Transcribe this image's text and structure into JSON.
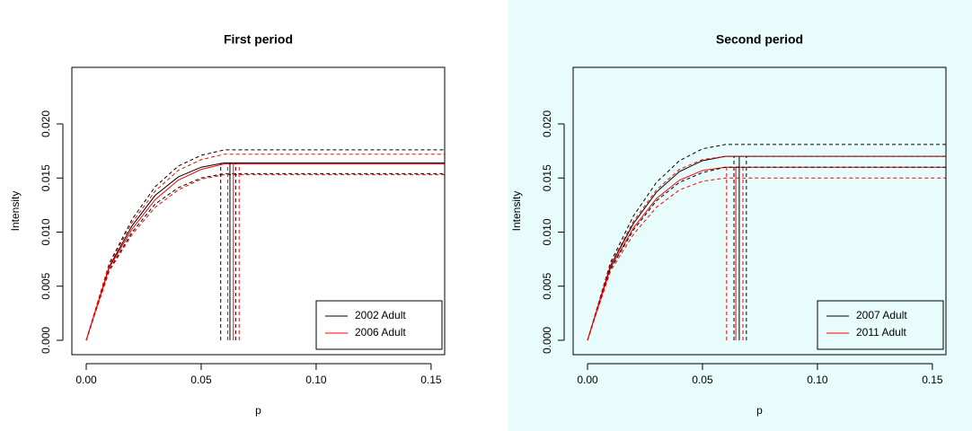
{
  "chart_data": [
    {
      "type": "line",
      "title": "First period",
      "xlabel": "p",
      "ylabel": "Intensity",
      "background": "#ffffff",
      "xlim": [
        -0.00625,
        0.1559
      ],
      "ylim": [
        -0.00133,
        0.02523
      ],
      "xticks": [
        {
          "value": 0,
          "label": "0.00"
        },
        {
          "value": 0.05,
          "label": "0.05"
        },
        {
          "value": 0.1,
          "label": "0.10"
        },
        {
          "value": 0.15,
          "label": "0.15"
        }
      ],
      "yticks": [
        {
          "value": 0,
          "label": "0.000"
        },
        {
          "value": 0.005,
          "label": "0.005"
        },
        {
          "value": 0.01,
          "label": "0.010"
        },
        {
          "value": 0.015,
          "label": "0.015"
        },
        {
          "value": 0.02,
          "label": "0.020"
        }
      ],
      "x": [
        0,
        0.01,
        0.02,
        0.03,
        0.04,
        0.05,
        0.06,
        0.156
      ],
      "series": [
        {
          "name": "2002 Adult",
          "color": "#000000",
          "dash": false,
          "values": [
            0,
            0.0068,
            0.0106,
            0.0134,
            0.0151,
            0.016,
            0.0164,
            0.0164
          ]
        },
        {
          "name": "2006 Adult",
          "color": "#ff0000",
          "dash": false,
          "values": [
            0,
            0.0067,
            0.0103,
            0.013,
            0.0148,
            0.0158,
            0.0163,
            0.0163
          ]
        },
        {
          "color": "#000000",
          "dash": true,
          "values": [
            0,
            0.0071,
            0.0112,
            0.0142,
            0.0161,
            0.0171,
            0.0176,
            0.0176
          ]
        },
        {
          "color": "#000000",
          "dash": true,
          "values": [
            0,
            0.0065,
            0.01,
            0.0126,
            0.0141,
            0.015,
            0.0154,
            0.0154
          ]
        },
        {
          "color": "#ff0000",
          "dash": true,
          "values": [
            0,
            0.007,
            0.0109,
            0.0138,
            0.0157,
            0.0167,
            0.0172,
            0.0172
          ]
        },
        {
          "color": "#ff0000",
          "dash": true,
          "values": [
            0,
            0.0064,
            0.0098,
            0.0123,
            0.0139,
            0.0149,
            0.0153,
            0.0153
          ]
        }
      ],
      "vlines": [
        {
          "x": 0.0625,
          "ymax": 0.0164,
          "color": "#000000",
          "dash": false
        },
        {
          "x": 0.0585,
          "ymax": 0.0164,
          "color": "#000000",
          "dash": true
        },
        {
          "x": 0.065,
          "ymax": 0.0164,
          "color": "#000000",
          "dash": true
        },
        {
          "x": 0.064,
          "ymax": 0.0163,
          "color": "#ff0000",
          "dash": false
        },
        {
          "x": 0.0615,
          "ymax": 0.0163,
          "color": "#ff0000",
          "dash": true
        },
        {
          "x": 0.0665,
          "ymax": 0.0163,
          "color": "#ff0000",
          "dash": true
        }
      ]
    },
    {
      "type": "line",
      "title": "Second period",
      "xlabel": "p",
      "ylabel": "Intensity",
      "background": "#e8fcfc",
      "xlim": [
        -0.00625,
        0.1559
      ],
      "ylim": [
        -0.00133,
        0.02523
      ],
      "xticks": [
        {
          "value": 0,
          "label": "0.00"
        },
        {
          "value": 0.05,
          "label": "0.05"
        },
        {
          "value": 0.1,
          "label": "0.10"
        },
        {
          "value": 0.15,
          "label": "0.15"
        }
      ],
      "yticks": [
        {
          "value": 0,
          "label": "0.000"
        },
        {
          "value": 0.005,
          "label": "0.005"
        },
        {
          "value": 0.01,
          "label": "0.010"
        },
        {
          "value": 0.015,
          "label": "0.015"
        },
        {
          "value": 0.02,
          "label": "0.020"
        }
      ],
      "x": [
        0,
        0.01,
        0.02,
        0.03,
        0.04,
        0.05,
        0.06,
        0.156
      ],
      "series": [
        {
          "name": "2007 Adult",
          "color": "#000000",
          "dash": false,
          "values": [
            0,
            0.0069,
            0.0108,
            0.0137,
            0.0156,
            0.0166,
            0.017,
            0.017
          ]
        },
        {
          "name": "2011 Adult",
          "color": "#ff0000",
          "dash": false,
          "values": [
            0,
            0.0067,
            0.0104,
            0.0131,
            0.0148,
            0.0157,
            0.016,
            0.016
          ]
        },
        {
          "color": "#000000",
          "dash": true,
          "values": [
            0,
            0.0072,
            0.0115,
            0.0146,
            0.0166,
            0.0177,
            0.0181,
            0.0181
          ]
        },
        {
          "color": "#000000",
          "dash": true,
          "values": [
            0,
            0.0066,
            0.0102,
            0.0129,
            0.0146,
            0.0155,
            0.016,
            0.016
          ]
        },
        {
          "color": "#ff0000",
          "dash": true,
          "values": [
            0,
            0.007,
            0.011,
            0.0139,
            0.0158,
            0.0167,
            0.017,
            0.017
          ]
        },
        {
          "color": "#ff0000",
          "dash": true,
          "values": [
            0,
            0.0064,
            0.0098,
            0.0123,
            0.0139,
            0.0147,
            0.015,
            0.015
          ]
        }
      ],
      "vlines": [
        {
          "x": 0.066,
          "ymax": 0.017,
          "color": "#000000",
          "dash": false
        },
        {
          "x": 0.0637,
          "ymax": 0.017,
          "color": "#000000",
          "dash": true
        },
        {
          "x": 0.0691,
          "ymax": 0.017,
          "color": "#000000",
          "dash": true
        },
        {
          "x": 0.0645,
          "ymax": 0.016,
          "color": "#ff0000",
          "dash": false
        },
        {
          "x": 0.0605,
          "ymax": 0.016,
          "color": "#ff0000",
          "dash": true
        },
        {
          "x": 0.0676,
          "ymax": 0.016,
          "color": "#ff0000",
          "dash": true
        }
      ]
    }
  ]
}
